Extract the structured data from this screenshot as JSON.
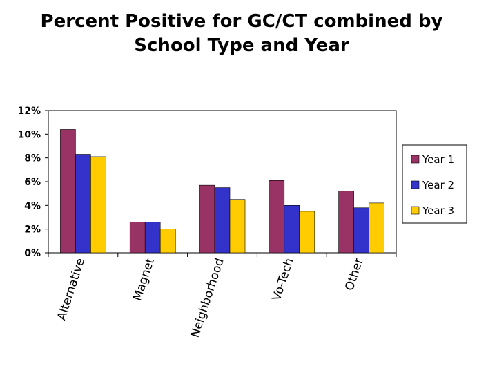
{
  "chart_data": {
    "type": "bar",
    "title_lines": [
      "Percent Positive for GC/CT combined by",
      "School Type and Year"
    ],
    "categories": [
      "Alternative",
      "Magnet",
      "Neighborhood",
      "Vo-Tech",
      "Other"
    ],
    "series": [
      {
        "name": "Year 1",
        "color": "#993366",
        "values": [
          10.4,
          2.6,
          5.7,
          6.1,
          5.2
        ]
      },
      {
        "name": "Year 2",
        "color": "#3333cc",
        "values": [
          8.3,
          2.6,
          5.5,
          4.0,
          3.8
        ]
      },
      {
        "name": "Year 3",
        "color": "#ffcc00",
        "values": [
          8.1,
          2.0,
          4.5,
          3.5,
          4.2
        ]
      }
    ],
    "ylim": [
      0,
      12
    ],
    "yticks": [
      "0%",
      "2%",
      "4%",
      "6%",
      "8%",
      "10%",
      "12%"
    ],
    "xlabel": "",
    "ylabel": "",
    "legend": "right",
    "grid": false
  }
}
